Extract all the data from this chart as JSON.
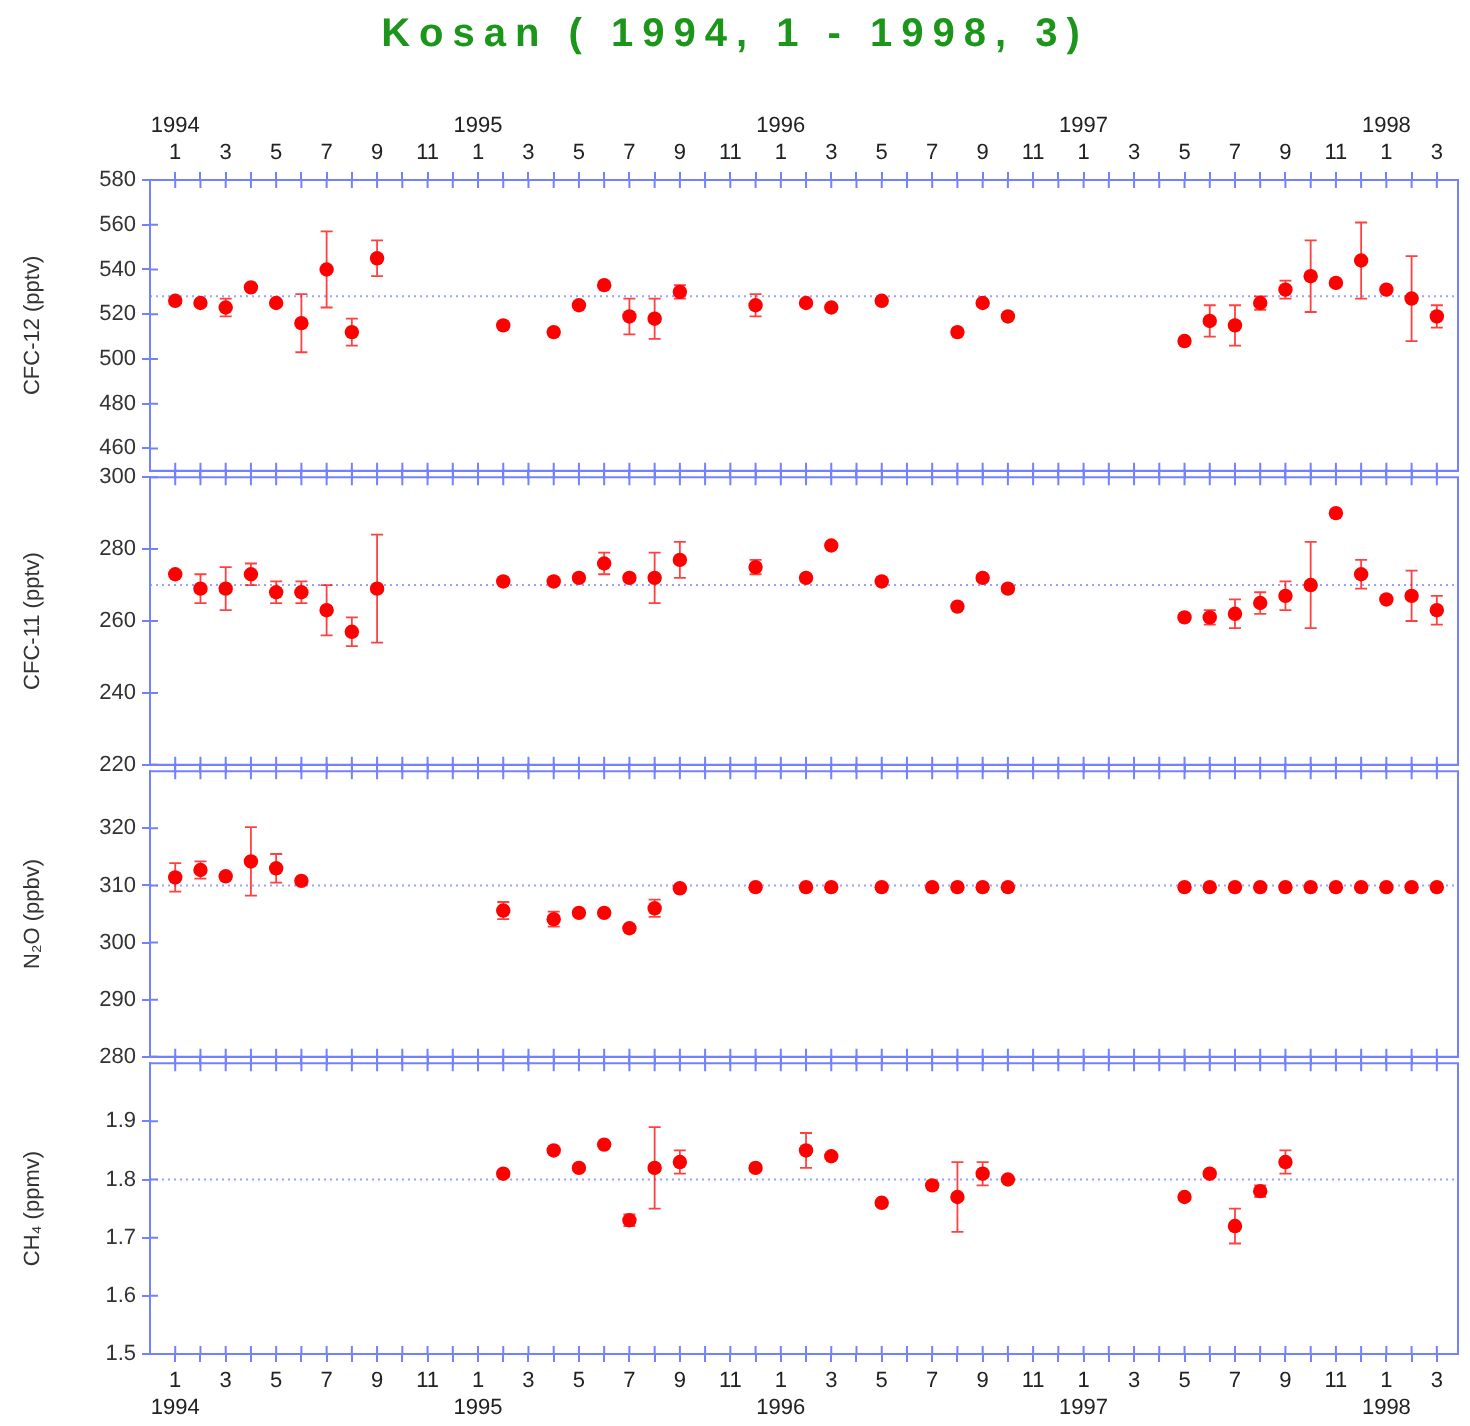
{
  "chart_data": [
    {
      "type": "scatter",
      "title": "Kosan ( 1994, 1 - 1998, 3)",
      "ylabel": "CFC-12 (pptv)",
      "x": [
        "1994-01",
        "1994-02",
        "1994-03",
        "1994-04",
        "1994-05",
        "1994-06",
        "1994-07",
        "1994-08",
        "1994-09",
        "1995-02",
        "1995-04",
        "1995-05",
        "1995-06",
        "1995-07",
        "1995-08",
        "1995-09",
        "1995-12",
        "1996-02",
        "1996-03",
        "1996-05",
        "1996-08",
        "1996-09",
        "1996-10",
        "1997-05",
        "1997-06",
        "1997-07",
        "1997-08",
        "1997-09",
        "1997-10",
        "1997-11",
        "1997-12",
        "1998-01",
        "1998-02",
        "1998-03"
      ],
      "values": [
        526,
        525,
        523,
        532,
        525,
        516,
        540,
        512,
        545,
        515,
        512,
        524,
        533,
        519,
        518,
        530,
        524,
        525,
        523,
        526,
        512,
        525,
        519,
        508,
        517,
        515,
        525,
        531,
        537,
        534,
        544,
        531,
        527,
        519
      ],
      "errors": [
        null,
        null,
        4,
        null,
        null,
        13,
        17,
        6,
        8,
        null,
        null,
        null,
        null,
        8,
        9,
        3,
        5,
        null,
        null,
        null,
        null,
        null,
        null,
        null,
        7,
        9,
        3,
        4,
        16,
        null,
        17,
        null,
        19,
        5
      ],
      "color": "#ff0000",
      "marker": "circle",
      "ylim": [
        450,
        580
      ],
      "yticks": [
        460,
        480,
        500,
        520,
        540,
        560,
        580
      ],
      "xlim": [
        "1993-12",
        "1998-03-27"
      ],
      "xticks": [
        "1994-01",
        "1994-02",
        "1994-03",
        "1994-04",
        "1994-05",
        "1994-06",
        "1994-07",
        "1994-08",
        "1994-09",
        "1994-10",
        "1994-11",
        "1994-12",
        "1995-01",
        "1995-02",
        "1995-03",
        "1995-04",
        "1995-05",
        "1995-06",
        "1995-07",
        "1995-08",
        "1995-09",
        "1995-10",
        "1995-11",
        "1995-12",
        "1996-01",
        "1996-02",
        "1996-03",
        "1996-04",
        "1996-05",
        "1996-06",
        "1996-07",
        "1996-08",
        "1996-09",
        "1996-10",
        "1996-11",
        "1996-12",
        "1997-01",
        "1997-02",
        "1997-03",
        "1997-04",
        "1997-05",
        "1997-06",
        "1997-07",
        "1997-08",
        "1997-09",
        "1997-10",
        "1997-11",
        "1997-12",
        "1998-01",
        "1998-02",
        "1998-03"
      ],
      "x2lim": [
        "1993-12",
        "1998-03-27"
      ],
      "x2ticks": [
        {
          "value": "1994-01",
          "label": "1994\n1"
        },
        {
          "value": "1994-02",
          "label": null
        },
        {
          "value": "1994-03",
          "label": "3"
        },
        {
          "value": "1994-04",
          "label": null
        },
        {
          "value": "1994-05",
          "label": "5"
        },
        {
          "value": "1994-06",
          "label": null
        },
        {
          "value": "1994-07",
          "label": "7"
        },
        {
          "value": "1994-08",
          "label": null
        },
        {
          "value": "1994-09",
          "label": "9"
        },
        {
          "value": "1994-10",
          "label": null
        },
        {
          "value": "1994-11",
          "label": "11"
        },
        {
          "value": "1994-12",
          "label": null
        },
        {
          "value": "1995-01",
          "label": "1995\n1"
        },
        {
          "value": "1995-02",
          "label": null
        },
        {
          "value": "1995-03",
          "label": "3"
        },
        {
          "value": "1995-04",
          "label": null
        },
        {
          "value": "1995-05",
          "label": "5"
        },
        {
          "value": "1995-06",
          "label": null
        },
        {
          "value": "1995-07",
          "label": "7"
        },
        {
          "value": "1995-08",
          "label": null
        },
        {
          "value": "1995-09",
          "label": "9"
        },
        {
          "value": "1995-10",
          "label": null
        },
        {
          "value": "1995-11",
          "label": "11"
        },
        {
          "value": "1995-12",
          "label": null
        },
        {
          "value": "1996-01",
          "label": "1996\n1"
        },
        {
          "value": "1996-02",
          "label": null
        },
        {
          "value": "1996-03",
          "label": "3"
        },
        {
          "value": "1996-04",
          "label": null
        },
        {
          "value": "1996-05",
          "label": "5"
        },
        {
          "value": "1996-06",
          "label": null
        },
        {
          "value": "1996-07",
          "label": "7"
        },
        {
          "value": "1996-08",
          "label": null
        },
        {
          "value": "1996-09",
          "label": "9"
        },
        {
          "value": "1996-10",
          "label": null
        },
        {
          "value": "1996-11",
          "label": "11"
        },
        {
          "value": "1996-12",
          "label": null
        },
        {
          "value": "1997-01",
          "label": "1997\n1"
        },
        {
          "value": "1997-02",
          "label": null
        },
        {
          "value": "1997-03",
          "label": "3"
        },
        {
          "value": "1997-04",
          "label": null
        },
        {
          "value": "1997-05",
          "label": "5"
        },
        {
          "value": "1997-06",
          "label": null
        },
        {
          "value": "1997-07",
          "label": "7"
        },
        {
          "value": "1997-08",
          "label": null
        },
        {
          "value": "1997-09",
          "label": "9"
        },
        {
          "value": "1997-10",
          "label": null
        },
        {
          "value": "1997-11",
          "label": "11"
        },
        {
          "value": "1997-12",
          "label": null
        },
        {
          "value": "1998-01",
          "label": "1998\n1"
        },
        {
          "value": "1998-02",
          "label": null
        },
        {
          "value": "1998-03",
          "label": "3"
        }
      ],
      "tick_labels": "y",
      "ref_lines": [
        {
          "axis": "y",
          "value": 528,
          "color": "#9ba3ff",
          "line_style": "dotted"
        }
      ]
    },
    {
      "type": "scatter",
      "ylabel": "CFC-11 (pptv)",
      "x": [
        "1994-01",
        "1994-02",
        "1994-03",
        "1994-04",
        "1994-05",
        "1994-06",
        "1994-07",
        "1994-08",
        "1994-09",
        "1995-02",
        "1995-04",
        "1995-05",
        "1995-06",
        "1995-07",
        "1995-08",
        "1995-09",
        "1995-12",
        "1996-02",
        "1996-03",
        "1996-05",
        "1996-08",
        "1996-09",
        "1996-10",
        "1997-05",
        "1997-06",
        "1997-07",
        "1997-08",
        "1997-09",
        "1997-10",
        "1997-11",
        "1997-12",
        "1998-01",
        "1998-02",
        "1998-03"
      ],
      "values": [
        273,
        269,
        269,
        273,
        268,
        268,
        263,
        257,
        269,
        271,
        271,
        272,
        276,
        272,
        272,
        277,
        275,
        272,
        281,
        271,
        264,
        272,
        269,
        261,
        261,
        262,
        265,
        267,
        270,
        290,
        273,
        266,
        267,
        263
      ],
      "errors": [
        null,
        4,
        6,
        3,
        3,
        3,
        7,
        4,
        15,
        null,
        null,
        null,
        3,
        null,
        7,
        5,
        2,
        null,
        null,
        null,
        null,
        null,
        null,
        null,
        2,
        4,
        3,
        4,
        12,
        null,
        4,
        null,
        7,
        4
      ],
      "color": "#ff0000",
      "marker": "circle",
      "ylim": [
        220,
        300
      ],
      "yticks": [
        220,
        240,
        260,
        280,
        300
      ],
      "xlim": [
        "1993-12",
        "1998-03-27"
      ],
      "xticks": [
        "1994-01",
        "1994-02",
        "1994-03",
        "1994-04",
        "1994-05",
        "1994-06",
        "1994-07",
        "1994-08",
        "1994-09",
        "1994-10",
        "1994-11",
        "1994-12",
        "1995-01",
        "1995-02",
        "1995-03",
        "1995-04",
        "1995-05",
        "1995-06",
        "1995-07",
        "1995-08",
        "1995-09",
        "1995-10",
        "1995-11",
        "1995-12",
        "1996-01",
        "1996-02",
        "1996-03",
        "1996-04",
        "1996-05",
        "1996-06",
        "1996-07",
        "1996-08",
        "1996-09",
        "1996-10",
        "1996-11",
        "1996-12",
        "1997-01",
        "1997-02",
        "1997-03",
        "1997-04",
        "1997-05",
        "1997-06",
        "1997-07",
        "1997-08",
        "1997-09",
        "1997-10",
        "1997-11",
        "1997-12",
        "1998-01",
        "1998-02",
        "1998-03"
      ],
      "tick_labels": "y",
      "ref_lines": [
        {
          "axis": "y",
          "value": 270,
          "color": "#9ba3ff",
          "line_style": "dotted"
        }
      ]
    },
    {
      "type": "scatter",
      "ylabel": "N₂O (ppbv)",
      "x": [
        "1994-01",
        "1994-02",
        "1994-03",
        "1994-04",
        "1994-05",
        "1994-06",
        "1995-02",
        "1995-04",
        "1995-05",
        "1995-06",
        "1995-07",
        "1995-08",
        "1995-09",
        "1995-12",
        "1996-02",
        "1996-03",
        "1996-05",
        "1996-07",
        "1996-08",
        "1996-09",
        "1996-10",
        "1997-05",
        "1997-06",
        "1997-07",
        "1997-08",
        "1997-09",
        "1997-10",
        "1997-11",
        "1997-12",
        "1998-01",
        "1998-02",
        "1998-03"
      ],
      "values": [
        311.4,
        312.7,
        311.6,
        314.2,
        313.0,
        310.8,
        305.6,
        304.1,
        305.2,
        305.2,
        302.5,
        306.0,
        309.5,
        309.7,
        309.7,
        309.7,
        309.7,
        309.7,
        309.7,
        309.7,
        309.7,
        309.7,
        309.7,
        309.7,
        309.7,
        309.7,
        309.7,
        309.7,
        309.7,
        309.7,
        309.7,
        309.7
      ],
      "errors": [
        2.5,
        1.5,
        null,
        6.0,
        2.5,
        null,
        1.5,
        1.3,
        null,
        null,
        null,
        1.5,
        null,
        null,
        null,
        null,
        null,
        null,
        null,
        null,
        null,
        null,
        null,
        null,
        null,
        null,
        null,
        null,
        null,
        null,
        null,
        null
      ],
      "color": "#ff0000",
      "marker": "circle",
      "ylim": [
        280,
        330
      ],
      "yticks": [
        280,
        290,
        300,
        310,
        320
      ],
      "xlim": [
        "1993-12",
        "1998-03-27"
      ],
      "xticks": [
        "1994-01",
        "1994-02",
        "1994-03",
        "1994-04",
        "1994-05",
        "1994-06",
        "1994-07",
        "1994-08",
        "1994-09",
        "1994-10",
        "1994-11",
        "1994-12",
        "1995-01",
        "1995-02",
        "1995-03",
        "1995-04",
        "1995-05",
        "1995-06",
        "1995-07",
        "1995-08",
        "1995-09",
        "1995-10",
        "1995-11",
        "1995-12",
        "1996-01",
        "1996-02",
        "1996-03",
        "1996-04",
        "1996-05",
        "1996-06",
        "1996-07",
        "1996-08",
        "1996-09",
        "1996-10",
        "1996-11",
        "1996-12",
        "1997-01",
        "1997-02",
        "1997-03",
        "1997-04",
        "1997-05",
        "1997-06",
        "1997-07",
        "1997-08",
        "1997-09",
        "1997-10",
        "1997-11",
        "1997-12",
        "1998-01",
        "1998-02",
        "1998-03"
      ],
      "tick_labels": "y",
      "ref_lines": [
        {
          "axis": "y",
          "value": 310,
          "color": "#9ba3ff",
          "line_style": "dotted"
        }
      ]
    },
    {
      "type": "scatter",
      "ylabel": "CH₄ (ppmv)",
      "x": [
        "1995-02",
        "1995-04",
        "1995-05",
        "1995-06",
        "1995-07",
        "1995-08",
        "1995-09",
        "1995-12",
        "1996-02",
        "1996-03",
        "1996-05",
        "1996-07",
        "1996-08",
        "1996-09",
        "1996-10",
        "1997-05",
        "1997-06",
        "1997-07",
        "1997-08",
        "1997-09"
      ],
      "values": [
        1.81,
        1.85,
        1.82,
        1.86,
        1.73,
        1.82,
        1.83,
        1.82,
        1.85,
        1.84,
        1.76,
        1.79,
        1.77,
        1.81,
        1.8,
        1.77,
        1.81,
        1.72,
        1.78,
        1.83
      ],
      "errors": [
        null,
        null,
        null,
        null,
        0.01,
        0.07,
        0.02,
        null,
        0.03,
        null,
        null,
        null,
        0.06,
        0.02,
        null,
        null,
        null,
        0.03,
        0.01,
        0.02
      ],
      "color": "#ff0000",
      "marker": "circle",
      "ylim": [
        1.5,
        2.0
      ],
      "yticks": [
        1.5,
        1.6,
        1.7,
        1.8,
        1.9
      ],
      "xlim": [
        "1993-12",
        "1998-03-27"
      ],
      "xticks": [
        {
          "value": "1994-01",
          "label": "1\n1994"
        },
        {
          "value": "1994-02",
          "label": null
        },
        {
          "value": "1994-03",
          "label": "3"
        },
        {
          "value": "1994-04",
          "label": null
        },
        {
          "value": "1994-05",
          "label": "5"
        },
        {
          "value": "1994-06",
          "label": null
        },
        {
          "value": "1994-07",
          "label": "7"
        },
        {
          "value": "1994-08",
          "label": null
        },
        {
          "value": "1994-09",
          "label": "9"
        },
        {
          "value": "1994-10",
          "label": null
        },
        {
          "value": "1994-11",
          "label": "11"
        },
        {
          "value": "1994-12",
          "label": null
        },
        {
          "value": "1995-01",
          "label": "1\n1995"
        },
        {
          "value": "1995-02",
          "label": null
        },
        {
          "value": "1995-03",
          "label": "3"
        },
        {
          "value": "1995-04",
          "label": null
        },
        {
          "value": "1995-05",
          "label": "5"
        },
        {
          "value": "1995-06",
          "label": null
        },
        {
          "value": "1995-07",
          "label": "7"
        },
        {
          "value": "1995-08",
          "label": null
        },
        {
          "value": "1995-09",
          "label": "9"
        },
        {
          "value": "1995-10",
          "label": null
        },
        {
          "value": "1995-11",
          "label": "11"
        },
        {
          "value": "1995-12",
          "label": null
        },
        {
          "value": "1996-01",
          "label": "1\n1996"
        },
        {
          "value": "1996-02",
          "label": null
        },
        {
          "value": "1996-03",
          "label": "3"
        },
        {
          "value": "1996-04",
          "label": null
        },
        {
          "value": "1996-05",
          "label": "5"
        },
        {
          "value": "1996-06",
          "label": null
        },
        {
          "value": "1996-07",
          "label": "7"
        },
        {
          "value": "1996-08",
          "label": null
        },
        {
          "value": "1996-09",
          "label": "9"
        },
        {
          "value": "1996-10",
          "label": null
        },
        {
          "value": "1996-11",
          "label": "11"
        },
        {
          "value": "1996-12",
          "label": null
        },
        {
          "value": "1997-01",
          "label": "1\n1997"
        },
        {
          "value": "1997-02",
          "label": null
        },
        {
          "value": "1997-03",
          "label": "3"
        },
        {
          "value": "1997-04",
          "label": null
        },
        {
          "value": "1997-05",
          "label": "5"
        },
        {
          "value": "1997-06",
          "label": null
        },
        {
          "value": "1997-07",
          "label": "7"
        },
        {
          "value": "1997-08",
          "label": null
        },
        {
          "value": "1997-09",
          "label": "9"
        },
        {
          "value": "1997-10",
          "label": null
        },
        {
          "value": "1997-11",
          "label": "11"
        },
        {
          "value": "1997-12",
          "label": null
        },
        {
          "value": "1998-01",
          "label": "1\n1998"
        },
        {
          "value": "1998-02",
          "label": null
        },
        {
          "value": "1998-03",
          "label": "3"
        }
      ],
      "ref_lines": [
        {
          "axis": "y",
          "value": 1.8,
          "color": "#9ba3ff",
          "line_style": "dotted"
        }
      ]
    }
  ]
}
